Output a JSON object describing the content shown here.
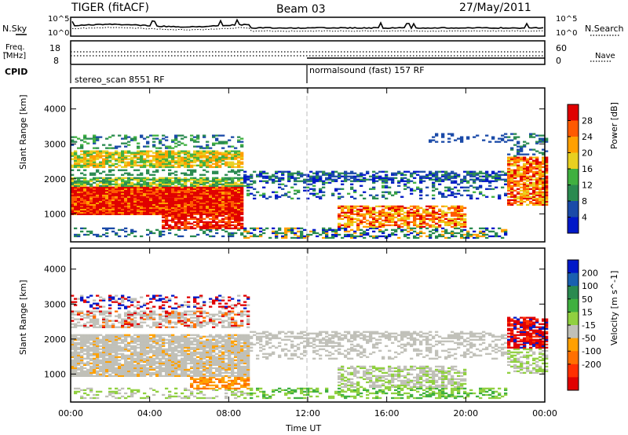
{
  "header": {
    "title_left": "TIGER (fitACF)",
    "title_center": "Beam 03",
    "title_right": "27/May/2011"
  },
  "aux_panels": {
    "nsky_label": "N.Sky",
    "nsearch_label": "N.Search",
    "freq_label_1": "Freq.",
    "freq_label_2": "[MHz]",
    "nave_label": "Nave",
    "cpid_label": "CPID",
    "left_top_tick": "10^5",
    "left_bottom_tick": "10^0",
    "right_top_tick": "10^5",
    "right_bottom_tick": "10^0",
    "freq_top": "18",
    "freq_bottom": "8",
    "nave_top": "60",
    "nave_bottom": "0",
    "cpid_left": "stereo_scan 8551 RF",
    "cpid_right": "normalsound (fast) 157 RF"
  },
  "chart_data": [
    {
      "type": "heatmap",
      "panel": "power",
      "ylabel": "Slant Range [km]",
      "xlabel": "Time UT",
      "colorbar_label": "Power [dB]",
      "colorbar_ticks": [
        "28",
        "24",
        "20",
        "16",
        "12",
        "8",
        "4"
      ],
      "colorbar_colors": [
        "#e00000",
        "#ff5a00",
        "#ffa000",
        "#e8d020",
        "#40b040",
        "#2a8a50",
        "#1a4aa8",
        "#0018c8"
      ],
      "y_ticks": [
        "4000",
        "3000",
        "2000",
        "1000"
      ],
      "ylim": [
        200,
        4600
      ],
      "xlim": [
        0,
        24
      ],
      "x_ticks": [
        "00:00",
        "04:00",
        "08:00",
        "12:00",
        "16:00",
        "20:00",
        "00:00"
      ]
    },
    {
      "type": "heatmap",
      "panel": "velocity",
      "ylabel": "Slant Range [km]",
      "xlabel": "Time UT",
      "colorbar_label": "Velocity [m s^-1]",
      "colorbar_ticks": [
        "200",
        "100",
        "50",
        "15",
        "-15",
        "-50",
        "-100",
        "-200"
      ],
      "colorbar_colors": [
        "#0018c8",
        "#1a60b0",
        "#2a8a50",
        "#40b040",
        "#90d040",
        "#c0c0b8",
        "#ffa000",
        "#ff7000",
        "#ff3000",
        "#e00000"
      ],
      "y_ticks": [
        "4000",
        "3000",
        "2000",
        "1000"
      ],
      "ylim": [
        200,
        4600
      ],
      "xlim": [
        0,
        24
      ],
      "x_ticks": [
        "00:00",
        "04:00",
        "08:00",
        "12:00",
        "16:00",
        "20:00",
        "00:00"
      ]
    }
  ]
}
